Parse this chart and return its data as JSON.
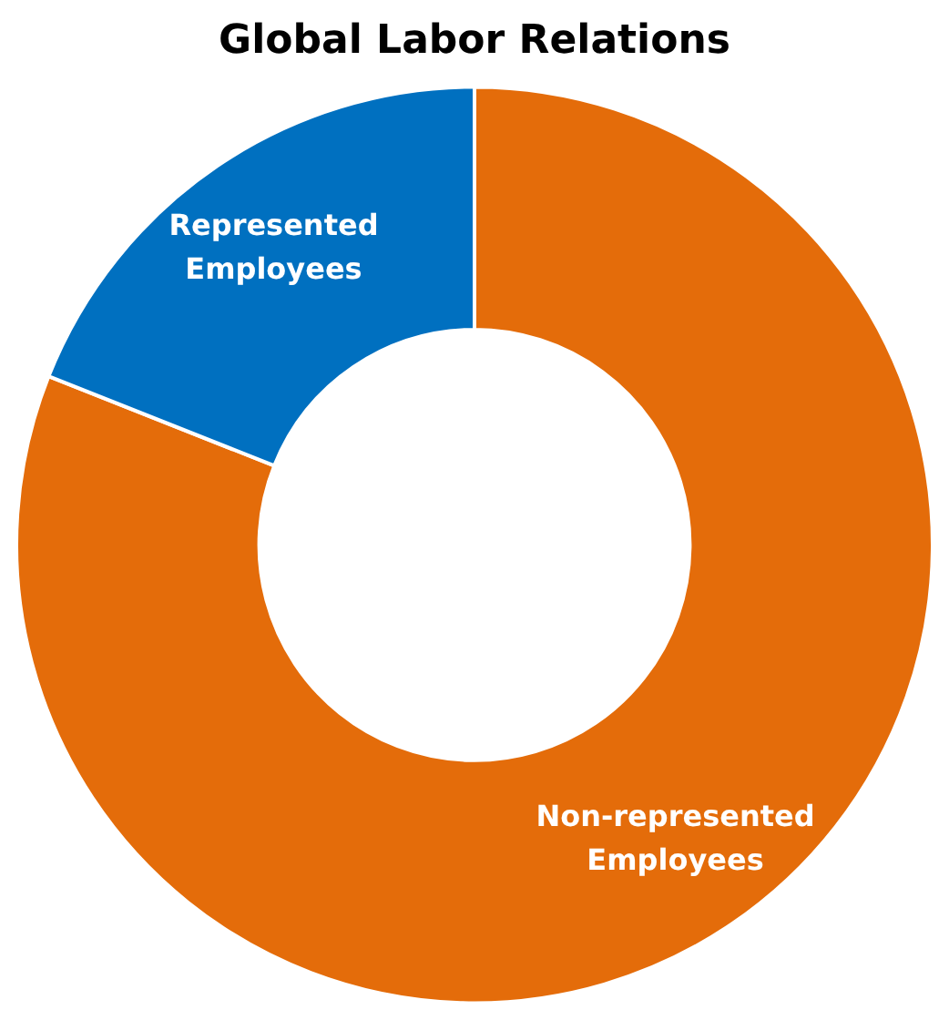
{
  "chart_data": {
    "type": "donut",
    "title": "Global Labor Relations",
    "categories": [
      "Non-represented Employees",
      "Represented Employees"
    ],
    "values": [
      81,
      19
    ],
    "colors": [
      "#e46c0a",
      "#0070c0"
    ],
    "legend": false
  }
}
